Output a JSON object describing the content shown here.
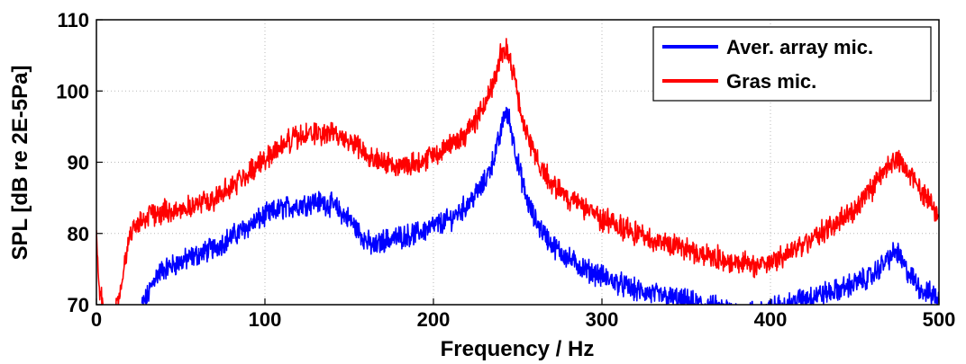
{
  "chart_data": {
    "type": "line",
    "title": "",
    "xlabel": "Frequency / Hz",
    "ylabel": "SPL [dB re 2E-5Pa]",
    "xlim": [
      0,
      500
    ],
    "ylim": [
      70,
      110
    ],
    "xticks": [
      0,
      100,
      200,
      300,
      400,
      500
    ],
    "yticks": [
      70,
      80,
      90,
      100,
      110
    ],
    "grid": true,
    "legend_position": "top-right",
    "series": [
      {
        "name": "Aver. array mic.",
        "color": "#0000ff",
        "x": [
          27,
          30,
          35,
          40,
          50,
          60,
          70,
          80,
          90,
          100,
          110,
          120,
          130,
          140,
          150,
          160,
          165,
          170,
          180,
          190,
          200,
          210,
          220,
          230,
          235,
          240,
          242,
          245,
          250,
          255,
          260,
          270,
          280,
          290,
          300,
          310,
          320,
          330,
          340,
          350,
          360,
          370,
          380,
          390,
          400,
          410,
          420,
          430,
          440,
          450,
          460,
          470,
          475,
          480,
          490,
          500
        ],
        "y": [
          70,
          71,
          74,
          75,
          76,
          77,
          78,
          79.5,
          81,
          82.5,
          83.5,
          84,
          84.5,
          84,
          82,
          79,
          78,
          79,
          79.5,
          80,
          81,
          82,
          84,
          87,
          90,
          94,
          97,
          96,
          90,
          85,
          82,
          78.5,
          76.5,
          75,
          74,
          73,
          72,
          71.5,
          71,
          70.5,
          70,
          69.5,
          69,
          69,
          69.5,
          70,
          71,
          71.5,
          72,
          73,
          74,
          76.5,
          77.5,
          75,
          72,
          71
        ]
      },
      {
        "name": "Gras mic.",
        "color": "#ff0000",
        "x": [
          0,
          2,
          5,
          10,
          15,
          20,
          25,
          30,
          40,
          50,
          60,
          70,
          80,
          90,
          100,
          110,
          120,
          130,
          140,
          150,
          160,
          170,
          180,
          190,
          200,
          210,
          220,
          230,
          235,
          240,
          243,
          246,
          250,
          255,
          260,
          270,
          280,
          290,
          300,
          310,
          320,
          330,
          340,
          350,
          360,
          370,
          380,
          390,
          400,
          410,
          420,
          430,
          440,
          450,
          460,
          470,
          475,
          480,
          490,
          500
        ],
        "y": [
          79,
          72,
          68,
          68,
          73,
          80,
          81.5,
          82.5,
          83,
          83.5,
          84,
          85,
          86.5,
          88.5,
          90.5,
          92.5,
          93.5,
          94,
          94,
          93,
          91.5,
          90,
          89.5,
          90,
          91,
          92.5,
          94,
          98,
          101,
          105,
          106,
          104,
          99,
          94,
          91,
          87,
          85,
          83.5,
          82,
          81,
          80,
          79,
          78.5,
          78,
          77,
          76.5,
          76,
          75.5,
          76,
          77,
          78.5,
          80,
          81.5,
          83.5,
          86,
          89.5,
          90.5,
          89,
          86,
          82.5
        ]
      }
    ]
  }
}
